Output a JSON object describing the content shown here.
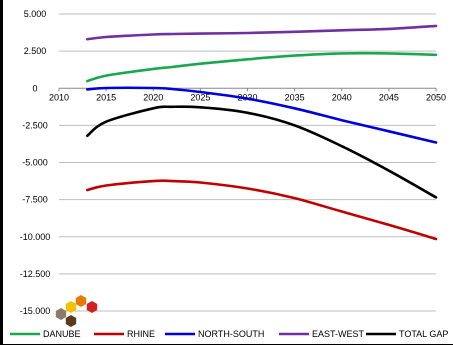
{
  "chart_data": {
    "type": "line",
    "title": "",
    "xlabel": "",
    "ylabel": "",
    "xlim": [
      2010,
      2050
    ],
    "ylim": [
      -15000,
      5000
    ],
    "x_ticks": [
      2010,
      2015,
      2020,
      2025,
      2030,
      2035,
      2040,
      2045,
      2050
    ],
    "x_tick_labels": [
      "2010",
      "2015",
      "2020",
      "2025",
      "2030",
      "2035",
      "2040",
      "2045",
      "2050"
    ],
    "y_ticks": [
      5000,
      2500,
      0,
      -2500,
      -5000,
      -7500,
      -10000,
      -12500,
      -15000
    ],
    "y_tick_labels": [
      "5.000",
      "2.500",
      "0",
      "-2.500",
      "-5.000",
      "-7.500",
      "-10.000",
      "-12.500",
      "-15.000"
    ],
    "grid": true,
    "legend_position": "bottom",
    "x": [
      2013,
      2015,
      2020,
      2022,
      2025,
      2030,
      2035,
      2040,
      2045,
      2050
    ],
    "series": [
      {
        "name": "DANUBE",
        "color": "#1aa84f",
        "values": [
          480,
          850,
          1300,
          1430,
          1650,
          1950,
          2200,
          2350,
          2350,
          2250
        ]
      },
      {
        "name": "RHINE",
        "color": "#c00000",
        "values": [
          -6850,
          -6550,
          -6250,
          -6250,
          -6350,
          -6750,
          -7400,
          -8300,
          -9200,
          -10150
        ]
      },
      {
        "name": "NORTH-SOUTH",
        "color": "#0000dd",
        "values": [
          -80,
          20,
          20,
          -50,
          -250,
          -700,
          -1350,
          -2150,
          -2900,
          -3650
        ]
      },
      {
        "name": "EAST-WEST",
        "color": "#7030a0",
        "values": [
          3300,
          3450,
          3620,
          3650,
          3680,
          3720,
          3800,
          3900,
          4000,
          4200
        ]
      },
      {
        "name": "TOTAL GAP",
        "color": "#000000",
        "values": [
          -3200,
          -2250,
          -1350,
          -1250,
          -1280,
          -1650,
          -2500,
          -3900,
          -5550,
          -7350
        ]
      }
    ]
  },
  "logo": {
    "colors": [
      "#8c7b6b",
      "#f2c200",
      "#e87a00",
      "#d02020",
      "#5a3a1a"
    ]
  }
}
